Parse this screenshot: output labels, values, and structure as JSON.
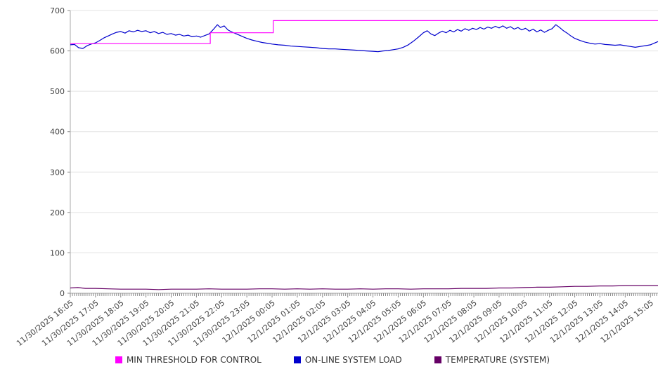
{
  "chart_data": {
    "type": "line",
    "title": "",
    "xlabel": "",
    "ylabel": "",
    "ylim": [
      0,
      700
    ],
    "y_ticks": [
      0,
      100,
      200,
      300,
      400,
      500,
      600,
      700
    ],
    "grid": "horizontal",
    "legend_position": "bottom-center",
    "x_hours_range": [
      0,
      23.3
    ],
    "x_tick_labels": [
      "11/30/2025 16:05",
      "11/30/2025 17:05",
      "11/30/2025 18:05",
      "11/30/2025 19:05",
      "11/30/2025 20:05",
      "11/30/2025 21:05",
      "11/30/2025 22:05",
      "11/30/2025 23:05",
      "12/1/2025 00:05",
      "12/1/2025 01:05",
      "12/1/2025 02:05",
      "12/1/2025 03:05",
      "12/1/2025 04:05",
      "12/1/2025 05:05",
      "12/1/2025 06:05",
      "12/1/2025 07:05",
      "12/1/2025 08:05",
      "12/1/2025 09:05",
      "12/1/2025 10:05",
      "12/1/2025 11:05",
      "12/1/2025 12:05",
      "12/1/2025 13:05",
      "12/1/2025 14:05",
      "12/1/2025 15:05"
    ],
    "colors": {
      "grid": "#e3e3e3",
      "axis": "#aaaaaa",
      "tick": "#888888",
      "text": "#444444"
    },
    "series": [
      {
        "name": "MIN THRESHOLD FOR CONTROL",
        "color": "#ff00ff",
        "points": [
          [
            0,
            618
          ],
          [
            5.55,
            618
          ],
          [
            5.55,
            645
          ],
          [
            8.05,
            645
          ],
          [
            8.05,
            675
          ],
          [
            23.3,
            675
          ]
        ]
      },
      {
        "name": "ON-LINE SYSTEM LOAD",
        "color": "#0000cd",
        "points": [
          [
            0,
            615
          ],
          [
            0.17,
            616
          ],
          [
            0.33,
            608
          ],
          [
            0.5,
            606
          ],
          [
            0.67,
            613
          ],
          [
            0.83,
            617
          ],
          [
            1,
            620
          ],
          [
            1.17,
            626
          ],
          [
            1.33,
            632
          ],
          [
            1.5,
            637
          ],
          [
            1.67,
            642
          ],
          [
            1.83,
            646
          ],
          [
            2,
            648
          ],
          [
            2.17,
            644
          ],
          [
            2.33,
            650
          ],
          [
            2.5,
            647
          ],
          [
            2.67,
            651
          ],
          [
            2.83,
            648
          ],
          [
            3,
            650
          ],
          [
            3.17,
            645
          ],
          [
            3.33,
            648
          ],
          [
            3.5,
            643
          ],
          [
            3.67,
            646
          ],
          [
            3.83,
            641
          ],
          [
            4,
            643
          ],
          [
            4.17,
            639
          ],
          [
            4.33,
            641
          ],
          [
            4.5,
            637
          ],
          [
            4.67,
            639
          ],
          [
            4.83,
            635
          ],
          [
            5,
            637
          ],
          [
            5.17,
            634
          ],
          [
            5.33,
            638
          ],
          [
            5.5,
            642
          ],
          [
            5.67,
            653
          ],
          [
            5.83,
            665
          ],
          [
            5.95,
            658
          ],
          [
            6.1,
            662
          ],
          [
            6.25,
            652
          ],
          [
            6.4,
            647
          ],
          [
            6.55,
            643
          ],
          [
            6.7,
            639
          ],
          [
            6.85,
            635
          ],
          [
            7,
            631
          ],
          [
            7.2,
            627
          ],
          [
            7.4,
            624
          ],
          [
            7.6,
            621
          ],
          [
            7.8,
            619
          ],
          [
            8,
            617
          ],
          [
            8.25,
            615
          ],
          [
            8.5,
            614
          ],
          [
            8.75,
            612
          ],
          [
            9,
            611
          ],
          [
            9.25,
            610
          ],
          [
            9.5,
            609
          ],
          [
            9.75,
            608
          ],
          [
            10,
            606
          ],
          [
            10.25,
            605
          ],
          [
            10.5,
            605
          ],
          [
            10.75,
            604
          ],
          [
            11,
            603
          ],
          [
            11.25,
            602
          ],
          [
            11.5,
            601
          ],
          [
            11.75,
            600
          ],
          [
            12,
            599
          ],
          [
            12.2,
            598
          ],
          [
            12.4,
            600
          ],
          [
            12.6,
            601
          ],
          [
            12.8,
            603
          ],
          [
            13,
            605
          ],
          [
            13.2,
            609
          ],
          [
            13.4,
            615
          ],
          [
            13.6,
            624
          ],
          [
            13.8,
            634
          ],
          [
            14,
            645
          ],
          [
            14.15,
            650
          ],
          [
            14.3,
            642
          ],
          [
            14.45,
            638
          ],
          [
            14.6,
            644
          ],
          [
            14.75,
            649
          ],
          [
            14.9,
            645
          ],
          [
            15.05,
            651
          ],
          [
            15.2,
            647
          ],
          [
            15.35,
            653
          ],
          [
            15.5,
            649
          ],
          [
            15.65,
            655
          ],
          [
            15.8,
            651
          ],
          [
            15.95,
            656
          ],
          [
            16.1,
            653
          ],
          [
            16.25,
            658
          ],
          [
            16.4,
            654
          ],
          [
            16.55,
            659
          ],
          [
            16.7,
            656
          ],
          [
            16.85,
            661
          ],
          [
            17,
            657
          ],
          [
            17.15,
            662
          ],
          [
            17.3,
            656
          ],
          [
            17.45,
            660
          ],
          [
            17.6,
            654
          ],
          [
            17.75,
            658
          ],
          [
            17.9,
            652
          ],
          [
            18.05,
            656
          ],
          [
            18.2,
            649
          ],
          [
            18.35,
            654
          ],
          [
            18.5,
            647
          ],
          [
            18.65,
            652
          ],
          [
            18.8,
            646
          ],
          [
            18.95,
            651
          ],
          [
            19.1,
            655
          ],
          [
            19.25,
            665
          ],
          [
            19.4,
            658
          ],
          [
            19.55,
            650
          ],
          [
            19.7,
            644
          ],
          [
            19.85,
            637
          ],
          [
            20,
            631
          ],
          [
            20.2,
            626
          ],
          [
            20.4,
            622
          ],
          [
            20.6,
            619
          ],
          [
            20.8,
            617
          ],
          [
            21,
            618
          ],
          [
            21.2,
            616
          ],
          [
            21.4,
            615
          ],
          [
            21.6,
            614
          ],
          [
            21.8,
            615
          ],
          [
            22,
            613
          ],
          [
            22.2,
            611
          ],
          [
            22.4,
            609
          ],
          [
            22.6,
            611
          ],
          [
            22.8,
            613
          ],
          [
            23,
            615
          ],
          [
            23.15,
            619
          ],
          [
            23.3,
            623
          ]
        ]
      },
      {
        "name": "TEMPERATURE (SYSTEM)",
        "color": "#660066",
        "points": [
          [
            0,
            13
          ],
          [
            0.3,
            14
          ],
          [
            0.6,
            12
          ],
          [
            1,
            12
          ],
          [
            1.5,
            11
          ],
          [
            2,
            10
          ],
          [
            2.5,
            10
          ],
          [
            3,
            10
          ],
          [
            3.5,
            9
          ],
          [
            4,
            10
          ],
          [
            4.5,
            10
          ],
          [
            5,
            10
          ],
          [
            5.5,
            11
          ],
          [
            6,
            10
          ],
          [
            6.5,
            10
          ],
          [
            7,
            10
          ],
          [
            7.5,
            11
          ],
          [
            8,
            11
          ],
          [
            8.5,
            10
          ],
          [
            9,
            11
          ],
          [
            9.5,
            10
          ],
          [
            10,
            11
          ],
          [
            10.5,
            10
          ],
          [
            11,
            10
          ],
          [
            11.5,
            11
          ],
          [
            12,
            10
          ],
          [
            12.5,
            11
          ],
          [
            13,
            11
          ],
          [
            13.5,
            10
          ],
          [
            14,
            11
          ],
          [
            14.5,
            11
          ],
          [
            15,
            11
          ],
          [
            15.5,
            12
          ],
          [
            16,
            12
          ],
          [
            16.5,
            12
          ],
          [
            17,
            13
          ],
          [
            17.5,
            13
          ],
          [
            18,
            14
          ],
          [
            18.5,
            15
          ],
          [
            19,
            15
          ],
          [
            19.5,
            16
          ],
          [
            20,
            17
          ],
          [
            20.5,
            17
          ],
          [
            21,
            18
          ],
          [
            21.5,
            18
          ],
          [
            22,
            19
          ],
          [
            22.5,
            19
          ],
          [
            23,
            19
          ],
          [
            23.3,
            19
          ]
        ]
      }
    ]
  }
}
